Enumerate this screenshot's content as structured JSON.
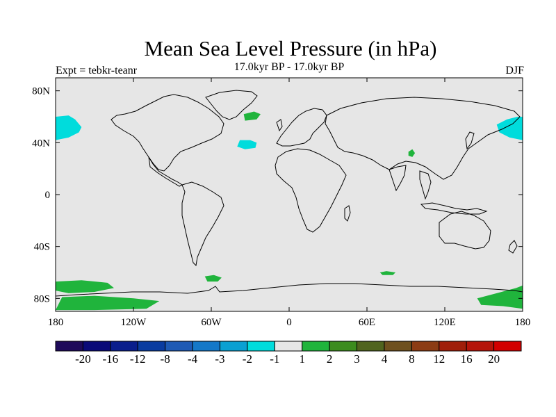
{
  "title": "Mean Sea Level Pressure (in hPa)",
  "subtitle_left": "Expt = tebkr-teanr",
  "subtitle_center": "17.0kyr BP - 17.0kyr BP",
  "subtitle_right": "DJF",
  "colors": {
    "background_land_ocean": "#e6e6e6",
    "coast": "#000000",
    "anomaly_negative": "#00dcdc",
    "anomaly_positive": "#20b43c"
  },
  "chart_data": {
    "type": "heatmap",
    "projection": "cylindrical-equidistant",
    "lon_range": [
      -180,
      180
    ],
    "lat_range": [
      -90,
      90
    ],
    "x_ticks": [
      {
        "value": -180,
        "label": "180"
      },
      {
        "value": -120,
        "label": "120W"
      },
      {
        "value": -60,
        "label": "60W"
      },
      {
        "value": 0,
        "label": "0"
      },
      {
        "value": 60,
        "label": "60E"
      },
      {
        "value": 120,
        "label": "120E"
      },
      {
        "value": 180,
        "label": "180"
      }
    ],
    "y_ticks": [
      {
        "value": 80,
        "label": "80N"
      },
      {
        "value": 40,
        "label": "40N"
      },
      {
        "value": 0,
        "label": "0"
      },
      {
        "value": -40,
        "label": "40S"
      },
      {
        "value": -80,
        "label": "80S"
      }
    ],
    "colorbar": {
      "colors": [
        "#1e0a5a",
        "#0a0a78",
        "#0a1e8c",
        "#0a3ca0",
        "#1e5ab4",
        "#1478c8",
        "#0aa0d2",
        "#00dcdc",
        "#e6e6e6",
        "#20b43c",
        "#3c8c1e",
        "#50641e",
        "#6e501e",
        "#8c3c14",
        "#a01e0a",
        "#b4140a",
        "#d20000"
      ],
      "labels": [
        "-20",
        "-16",
        "-12",
        "-8",
        "-4",
        "-3",
        "-2",
        "-1",
        "1",
        "2",
        "3",
        "4",
        "8",
        "12",
        "16",
        "20"
      ]
    },
    "anomaly_regions": [
      {
        "sign": "negative",
        "level": "-2 to -1",
        "points": [
          [
            -180,
            60
          ],
          [
            -170,
            61
          ],
          [
            -165,
            58
          ],
          [
            -160,
            52
          ],
          [
            -162,
            48
          ],
          [
            -170,
            44
          ],
          [
            -180,
            42
          ]
        ]
      },
      {
        "sign": "negative",
        "level": "-2 to -1",
        "points": [
          [
            180,
            42
          ],
          [
            170,
            44
          ],
          [
            162,
            48
          ],
          [
            160,
            54
          ],
          [
            168,
            58
          ],
          [
            176,
            60
          ],
          [
            180,
            60
          ]
        ]
      },
      {
        "sign": "negative",
        "level": "-2 to -1",
        "points": [
          [
            -38,
            42
          ],
          [
            -30,
            42
          ],
          [
            -25,
            40
          ],
          [
            -26,
            36
          ],
          [
            -34,
            35
          ],
          [
            -40,
            37
          ]
        ]
      },
      {
        "sign": "positive",
        "level": "1 to 2",
        "points": [
          [
            -35,
            62
          ],
          [
            -27,
            64
          ],
          [
            -22,
            62
          ],
          [
            -25,
            58
          ],
          [
            -34,
            57
          ]
        ]
      },
      {
        "sign": "positive",
        "level": "1 to 2",
        "points": [
          [
            92,
            33
          ],
          [
            95,
            35
          ],
          [
            97,
            32
          ],
          [
            95,
            29
          ],
          [
            92,
            30
          ]
        ]
      },
      {
        "sign": "positive",
        "level": "1 to 2",
        "points": [
          [
            -180,
            -67
          ],
          [
            -160,
            -66
          ],
          [
            -140,
            -68
          ],
          [
            -135,
            -72
          ],
          [
            -150,
            -75
          ],
          [
            -170,
            -76
          ],
          [
            -180,
            -74
          ]
        ]
      },
      {
        "sign": "positive",
        "level": "1 to 2",
        "points": [
          [
            -175,
            -79
          ],
          [
            -150,
            -78
          ],
          [
            -120,
            -80
          ],
          [
            -100,
            -82
          ],
          [
            -110,
            -88
          ],
          [
            -150,
            -89
          ],
          [
            -180,
            -89
          ]
        ]
      },
      {
        "sign": "positive",
        "level": "1 to 2",
        "points": [
          [
            -65,
            -63
          ],
          [
            -58,
            -62
          ],
          [
            -52,
            -64
          ],
          [
            -55,
            -67
          ],
          [
            -63,
            -67
          ]
        ]
      },
      {
        "sign": "positive",
        "level": "1 to 2",
        "points": [
          [
            70,
            -60
          ],
          [
            75,
            -59
          ],
          [
            82,
            -60
          ],
          [
            80,
            -62
          ],
          [
            72,
            -62
          ]
        ]
      },
      {
        "sign": "positive",
        "level": "1 to 2",
        "points": [
          [
            145,
            -80
          ],
          [
            160,
            -76
          ],
          [
            175,
            -72
          ],
          [
            180,
            -70
          ],
          [
            180,
            -88
          ],
          [
            165,
            -86
          ],
          [
            148,
            -85
          ]
        ]
      }
    ]
  }
}
